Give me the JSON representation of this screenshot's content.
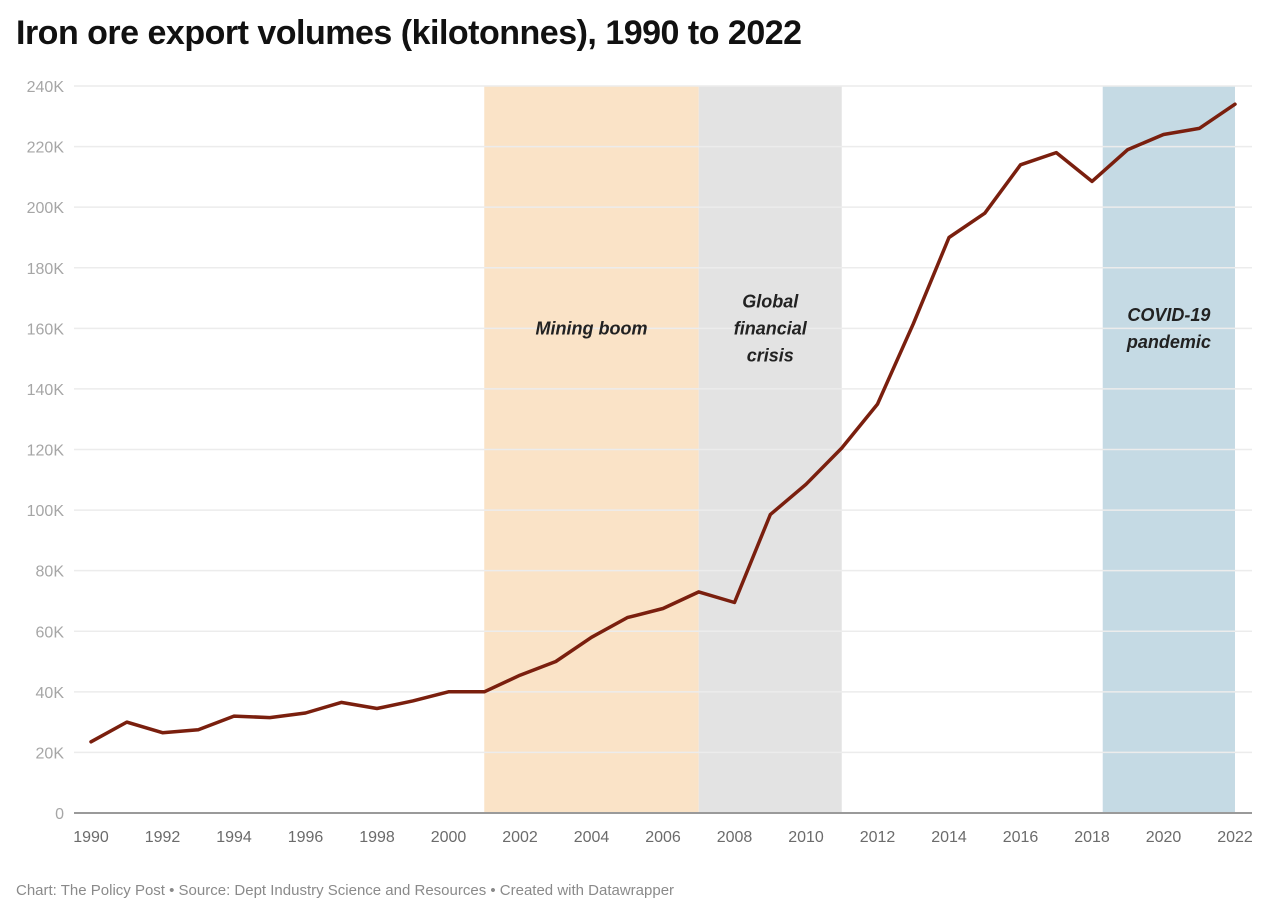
{
  "header": {
    "title": "Iron ore export volumes (kilotonnes), 1990 to 2022"
  },
  "footer": {
    "text": "Chart: The Policy Post • Source: Dept Industry Science and Resources • Created with Datawrapper"
  },
  "colors": {
    "line": "#7a1f0e",
    "mining_boom": "#fae3c7",
    "gfc": "#e3e3e3",
    "covid": "#c5dae4",
    "grid": "#ececec",
    "axis": "#9a9a9a"
  },
  "chart_data": {
    "type": "line",
    "title": "Iron ore export volumes (kilotonnes), 1990 to 2022",
    "xlabel": "",
    "ylabel": "",
    "xlim": [
      1990,
      2022
    ],
    "ylim": [
      0,
      240000
    ],
    "grid": true,
    "yticks": [
      0,
      20000,
      40000,
      60000,
      80000,
      100000,
      120000,
      140000,
      160000,
      180000,
      200000,
      220000,
      240000
    ],
    "ytick_labels": [
      "0",
      "20K",
      "40K",
      "60K",
      "80K",
      "100K",
      "120K",
      "140K",
      "160K",
      "180K",
      "200K",
      "220K",
      "240K"
    ],
    "xticks": [
      1990,
      1992,
      1994,
      1996,
      1998,
      2000,
      2002,
      2004,
      2006,
      2008,
      2010,
      2012,
      2014,
      2016,
      2018,
      2020,
      2022
    ],
    "xtick_labels": [
      "1990",
      "1992",
      "1994",
      "1996",
      "1998",
      "2000",
      "2002",
      "2004",
      "2006",
      "2008",
      "2010",
      "2012",
      "2014",
      "2016",
      "2018",
      "2020",
      "2022"
    ],
    "series": [
      {
        "name": "Iron ore export volumes",
        "x": [
          1990,
          1991,
          1992,
          1993,
          1994,
          1995,
          1996,
          1997,
          1998,
          1999,
          2000,
          2001,
          2002,
          2003,
          2004,
          2005,
          2006,
          2007,
          2008,
          2009,
          2010,
          2011,
          2012,
          2013,
          2014,
          2015,
          2016,
          2017,
          2018,
          2019,
          2020,
          2021,
          2022
        ],
        "values": [
          23500,
          30000,
          26500,
          27500,
          32000,
          31500,
          33000,
          36500,
          34500,
          37000,
          40000,
          40000,
          45500,
          50000,
          58000,
          64500,
          67500,
          73000,
          69500,
          98500,
          108500,
          120500,
          135000,
          161500,
          190000,
          198000,
          214000,
          218000,
          208500,
          219000,
          224000,
          226000,
          234000
        ]
      }
    ],
    "annotations": [
      {
        "label_lines": [
          "Mining boom"
        ],
        "from": 2001,
        "to": 2007,
        "color_key": "mining_boom",
        "label_y": 160000
      },
      {
        "label_lines": [
          "Global",
          "financial",
          "crisis"
        ],
        "from": 2007,
        "to": 2011,
        "color_key": "gfc",
        "label_y": 160000
      },
      {
        "label_lines": [
          "COVID-19",
          "pandemic"
        ],
        "from": 2018.3,
        "to": 2022,
        "color_key": "covid",
        "label_y": 160000
      }
    ]
  }
}
